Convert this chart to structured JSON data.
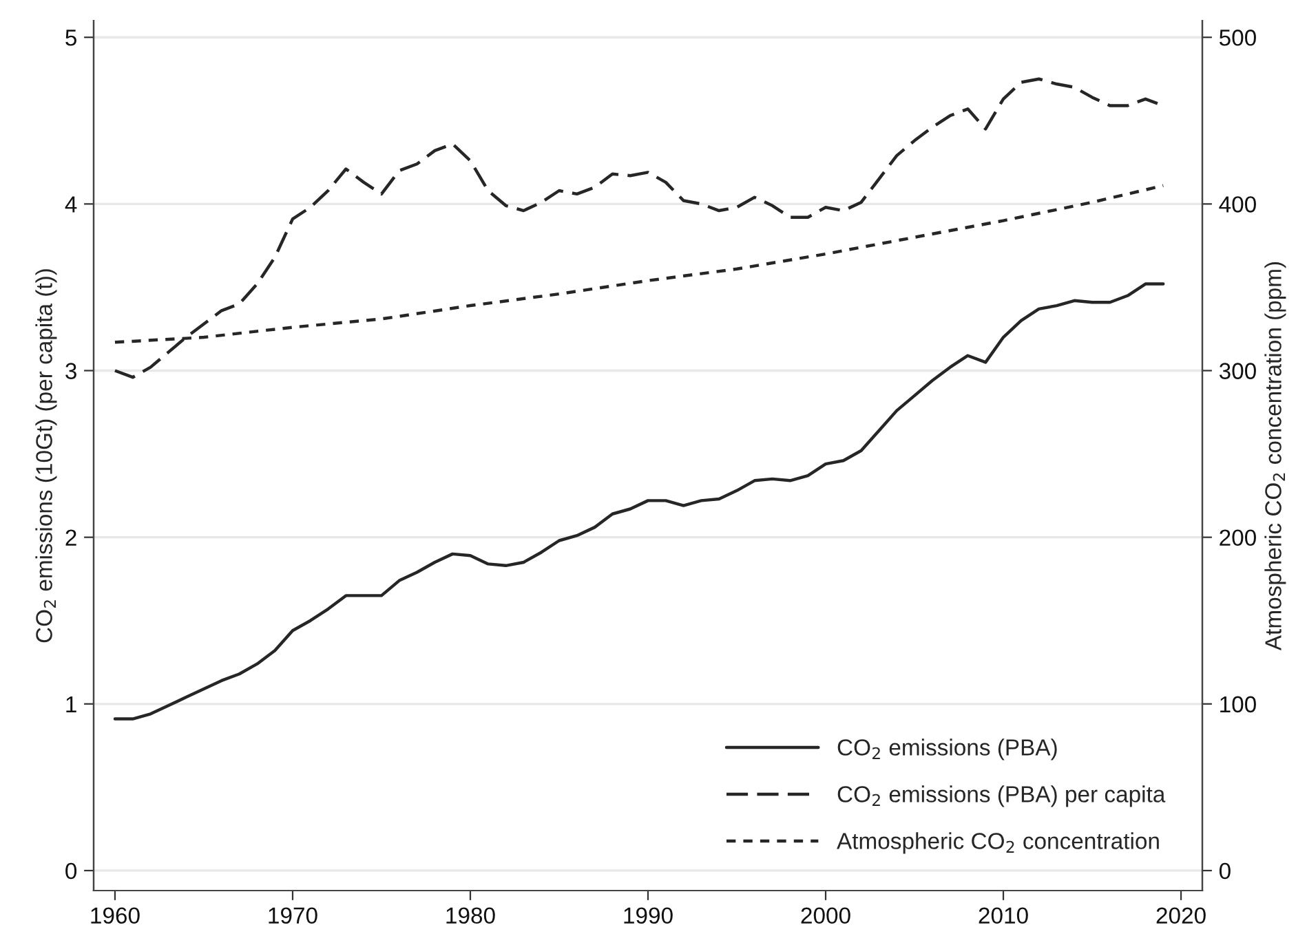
{
  "chart_data": {
    "type": "line",
    "xlabel": null,
    "ylabel": "CO$_{2}$ emissions (10Gt) (per capita (t))",
    "y2label": "Atmospheric CO$_{2}$ concentration (ppm)",
    "xlim": [
      1958.8,
      2021.2
    ],
    "xticks": [
      1960,
      1970,
      1980,
      1990,
      2000,
      2010,
      2020
    ],
    "ylim": [
      -0.12,
      5.1
    ],
    "yticks": [
      0,
      1,
      2,
      3,
      4,
      5
    ],
    "y2lim": [
      -12,
      510
    ],
    "y2ticks": [
      0,
      100,
      200,
      300,
      400,
      500
    ],
    "grid": "y",
    "legend": "bottom right",
    "series": [
      {
        "name": "CO$_{2}$ emissions (PBA)",
        "color": "#262626",
        "line_style": "solid",
        "x": [
          1960,
          1961,
          1962,
          1963,
          1964,
          1965,
          1966,
          1967,
          1968,
          1969,
          1970,
          1971,
          1972,
          1973,
          1974,
          1975,
          1976,
          1977,
          1978,
          1979,
          1980,
          1981,
          1982,
          1983,
          1984,
          1985,
          1986,
          1987,
          1988,
          1989,
          1990,
          1991,
          1992,
          1993,
          1994,
          1995,
          1996,
          1997,
          1998,
          1999,
          2000,
          2001,
          2002,
          2003,
          2004,
          2005,
          2006,
          2007,
          2008,
          2009,
          2010,
          2011,
          2012,
          2013,
          2014,
          2015,
          2016,
          2017,
          2018,
          2019
        ],
        "values": [
          0.91,
          0.91,
          0.94,
          0.99,
          1.04,
          1.09,
          1.14,
          1.18,
          1.24,
          1.32,
          1.44,
          1.5,
          1.57,
          1.65,
          1.65,
          1.65,
          1.74,
          1.79,
          1.85,
          1.9,
          1.89,
          1.84,
          1.83,
          1.85,
          1.91,
          1.98,
          2.01,
          2.06,
          2.14,
          2.17,
          2.22,
          2.22,
          2.19,
          2.22,
          2.23,
          2.28,
          2.34,
          2.35,
          2.34,
          2.37,
          2.44,
          2.46,
          2.52,
          2.64,
          2.76,
          2.85,
          2.94,
          3.02,
          3.09,
          3.05,
          3.2,
          3.3,
          3.37,
          3.39,
          3.42,
          3.41,
          3.41,
          3.45,
          3.52,
          3.52
        ]
      },
      {
        "name": "CO$_{2}$ emissions (PBA) per capita",
        "color": "#262626",
        "line_style": "dashed",
        "x": [
          1960,
          1961,
          1962,
          1963,
          1964,
          1965,
          1966,
          1967,
          1968,
          1969,
          1970,
          1971,
          1972,
          1973,
          1974,
          1975,
          1976,
          1977,
          1978,
          1979,
          1980,
          1981,
          1982,
          1983,
          1984,
          1985,
          1986,
          1987,
          1988,
          1989,
          1990,
          1991,
          1992,
          1993,
          1994,
          1995,
          1996,
          1997,
          1998,
          1999,
          2000,
          2001,
          2002,
          2003,
          2004,
          2005,
          2006,
          2007,
          2008,
          2009,
          2010,
          2011,
          2012,
          2013,
          2014,
          2015,
          2016,
          2017,
          2018,
          2019
        ],
        "values": [
          3.0,
          2.96,
          3.02,
          3.11,
          3.2,
          3.28,
          3.36,
          3.4,
          3.52,
          3.68,
          3.91,
          3.98,
          4.08,
          4.21,
          4.13,
          4.06,
          4.2,
          4.24,
          4.32,
          4.36,
          4.26,
          4.08,
          3.99,
          3.96,
          4.01,
          4.08,
          4.06,
          4.1,
          4.18,
          4.17,
          4.19,
          4.13,
          4.02,
          4.0,
          3.96,
          3.98,
          4.04,
          3.99,
          3.92,
          3.92,
          3.98,
          3.96,
          4.01,
          4.15,
          4.29,
          4.38,
          4.46,
          4.53,
          4.57,
          4.45,
          4.63,
          4.73,
          4.75,
          4.72,
          4.7,
          4.64,
          4.59,
          4.59,
          4.63,
          4.59
        ]
      },
      {
        "name": "Atmospheric CO$_{2}$ concentration",
        "color": "#262626",
        "line_style": "dotted",
        "axis": "y2",
        "x": [
          1960,
          1965,
          1970,
          1975,
          1980,
          1985,
          1990,
          1995,
          2000,
          2005,
          2010,
          2015,
          2019
        ],
        "values": [
          317,
          320,
          326,
          331,
          339,
          346,
          354,
          361,
          370,
          380,
          390,
          401,
          411
        ]
      }
    ]
  }
}
